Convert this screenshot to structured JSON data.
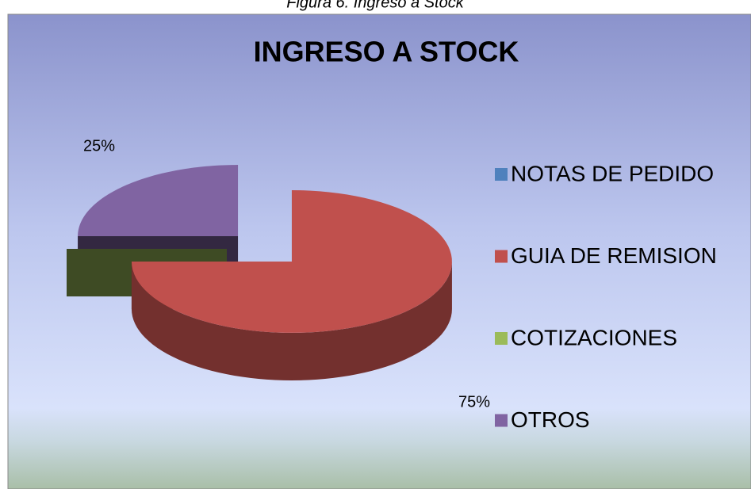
{
  "caption": "Figura 6. Ingreso a Stock",
  "chart_data": {
    "type": "pie3d",
    "title": "INGRESO A STOCK",
    "categories": [
      "NOTAS DE PEDIDO",
      "GUIA DE REMISION",
      "COTIZACIONES",
      "OTROS"
    ],
    "values": [
      0,
      75,
      0,
      25
    ],
    "value_labels": [
      null,
      "75%",
      null,
      "25%"
    ],
    "colors": [
      "#4f81bd",
      "#c0504d",
      "#9bbb59",
      "#8064a2"
    ],
    "legend": "right"
  }
}
